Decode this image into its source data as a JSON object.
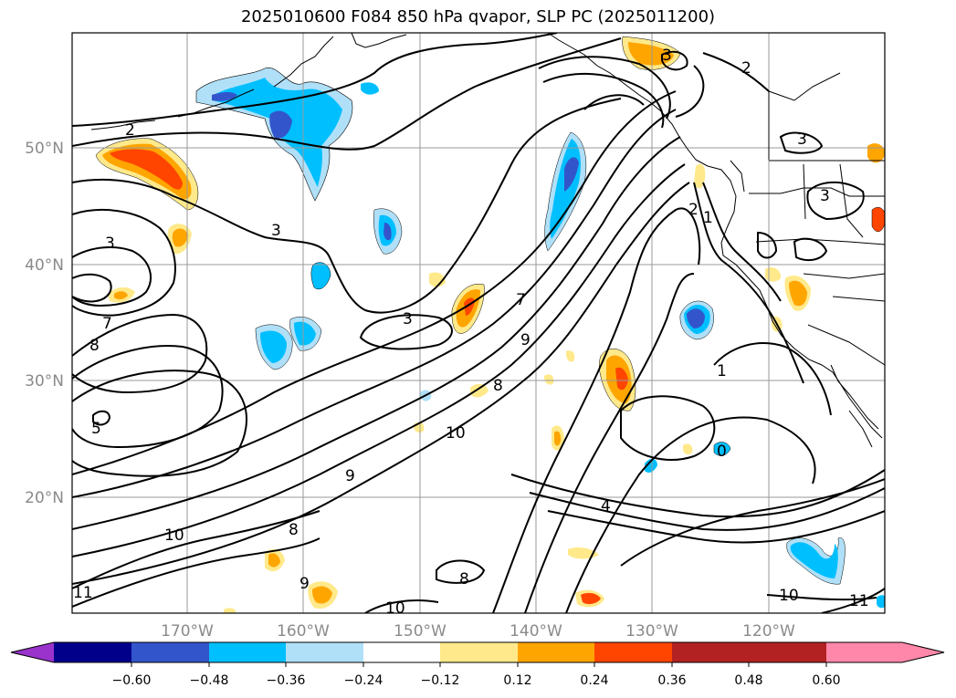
{
  "title": "2025010600 F084 850 hPa qvapor, SLP PC (2025011200)",
  "lat_labels": [
    "50°N",
    "40°N",
    "30°N",
    "20°N"
  ],
  "lon_labels": [
    "170°W",
    "160°W",
    "150°W",
    "140°W",
    "130°W",
    "120°W"
  ],
  "contour_labels": [
    "2",
    "2",
    "3",
    "3",
    "3",
    "3",
    "3",
    "3",
    "2",
    "1",
    "1",
    "7",
    "8",
    "5",
    "9",
    "10",
    "8",
    "7",
    "9",
    "9",
    "8",
    "10",
    "4",
    "10",
    "11",
    "11",
    "10",
    "8",
    "0"
  ],
  "colorbar": {
    "colors": [
      "#9933cc",
      "#00008b",
      "#3355cc",
      "#00bfff",
      "#b0e0f8",
      "#ffffff",
      "#ffe98a",
      "#ffa500",
      "#ff4500",
      "#b22222",
      "#ff88aa"
    ],
    "tick_labels": [
      "−0.60",
      "−0.48",
      "−0.36",
      "−0.24",
      "−0.12",
      "0.12",
      "0.24",
      "0.36",
      "0.48",
      "0.60"
    ]
  }
}
